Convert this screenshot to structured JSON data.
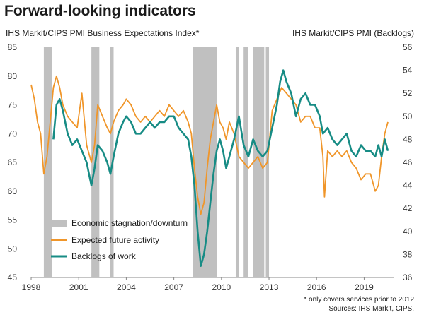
{
  "chart_data": {
    "type": "line",
    "title": "Forward-looking indicators",
    "ylabel_left": "IHS Markit/CIPS PMI Business Expectations Index*",
    "ylabel_right": "IHS Markit/CIPS PMI (Backlogs)",
    "xlim": [
      1998.0,
      2020.9
    ],
    "ylim_left": [
      45,
      85
    ],
    "ylim_right": [
      36,
      56
    ],
    "x_ticks": [
      1998,
      2001,
      2004,
      2007,
      2010,
      2013,
      2016,
      2019
    ],
    "y_left_ticks": [
      45,
      50,
      55,
      60,
      65,
      70,
      75,
      80,
      85
    ],
    "y_right_ticks": [
      36,
      38,
      40,
      42,
      44,
      46,
      48,
      50,
      52,
      54,
      56
    ],
    "shaded_periods": [
      [
        1998.8,
        1999.3
      ],
      [
        2001.8,
        2002.3
      ],
      [
        2003.0,
        2003.2
      ],
      [
        2008.2,
        2009.7
      ],
      [
        2010.9,
        2011.1
      ],
      [
        2011.4,
        2011.7
      ],
      [
        2012.0,
        2012.7
      ],
      [
        2012.8,
        2013.0
      ]
    ],
    "grid": false,
    "legend_position": "bottom-left",
    "series": [
      {
        "name": "Economic stagnation/downturn",
        "color": "#c0c0c0",
        "kind": "shading"
      },
      {
        "name": "Expected future activity",
        "color": "#f0962a",
        "axis": "left",
        "x": [
          1998.0,
          1998.2,
          1998.4,
          1998.6,
          1998.8,
          1999.0,
          1999.2,
          1999.4,
          1999.6,
          1999.8,
          2000.0,
          2000.3,
          2000.6,
          2000.9,
          2001.2,
          2001.5,
          2001.8,
          2002.0,
          2002.2,
          2002.5,
          2002.8,
          2003.0,
          2003.2,
          2003.5,
          2003.8,
          2004.0,
          2004.3,
          2004.6,
          2004.9,
          2005.2,
          2005.5,
          2005.8,
          2006.1,
          2006.4,
          2006.7,
          2007.0,
          2007.3,
          2007.6,
          2007.9,
          2008.1,
          2008.3,
          2008.5,
          2008.7,
          2008.9,
          2009.1,
          2009.3,
          2009.5,
          2009.7,
          2009.9,
          2010.1,
          2010.3,
          2010.5,
          2010.8,
          2011.1,
          2011.4,
          2011.7,
          2012.0,
          2012.3,
          2012.6,
          2012.9,
          2013.2,
          2013.5,
          2013.8,
          2014.1,
          2014.4,
          2014.7,
          2015.0,
          2015.3,
          2015.6,
          2015.9,
          2016.2,
          2016.4,
          2016.5,
          2016.7,
          2017.0,
          2017.3,
          2017.6,
          2017.9,
          2018.2,
          2018.5,
          2018.8,
          2019.1,
          2019.4,
          2019.7,
          2019.9,
          2020.1,
          2020.3,
          2020.5
        ],
        "values": [
          78.5,
          76,
          72,
          70,
          63,
          66,
          72,
          78,
          80,
          78,
          75,
          73,
          72,
          71,
          77,
          68,
          65,
          68,
          75,
          73,
          71,
          70,
          72,
          74,
          75,
          76,
          75,
          73,
          72,
          73,
          72,
          73,
          74,
          73,
          75,
          74,
          73,
          74,
          72,
          70,
          64,
          59,
          56,
          58,
          64,
          69,
          72,
          75,
          72,
          71,
          69,
          72,
          70,
          66,
          65,
          64,
          65,
          66,
          64,
          65,
          74,
          76,
          78,
          77,
          76,
          75,
          72,
          73,
          73,
          71,
          71,
          66,
          59,
          67,
          66,
          67,
          66,
          67,
          65,
          64,
          62,
          63,
          63,
          60,
          61,
          66,
          70,
          72
        ]
      },
      {
        "name": "Backlogs of work",
        "color": "#178c85",
        "axis": "right",
        "x": [
          1999.4,
          1999.6,
          1999.8,
          2000.0,
          2000.3,
          2000.6,
          2000.9,
          2001.2,
          2001.5,
          2001.8,
          2002.0,
          2002.2,
          2002.5,
          2002.8,
          2003.0,
          2003.2,
          2003.5,
          2003.8,
          2004.0,
          2004.3,
          2004.6,
          2004.9,
          2005.2,
          2005.5,
          2005.8,
          2006.1,
          2006.4,
          2006.7,
          2007.0,
          2007.3,
          2007.6,
          2007.9,
          2008.1,
          2008.3,
          2008.5,
          2008.7,
          2008.9,
          2009.1,
          2009.3,
          2009.5,
          2009.7,
          2009.9,
          2010.1,
          2010.3,
          2010.5,
          2010.8,
          2011.1,
          2011.4,
          2011.7,
          2012.0,
          2012.3,
          2012.6,
          2012.9,
          2013.2,
          2013.5,
          2013.7,
          2013.9,
          2014.1,
          2014.4,
          2014.7,
          2015.0,
          2015.3,
          2015.6,
          2015.9,
          2016.2,
          2016.4,
          2016.7,
          2017.0,
          2017.3,
          2017.6,
          2017.9,
          2018.2,
          2018.5,
          2018.8,
          2019.1,
          2019.4,
          2019.7,
          2019.9,
          2020.1,
          2020.3,
          2020.5
        ],
        "values": [
          48,
          51,
          51.5,
          50.5,
          48.5,
          47.5,
          48,
          47,
          46,
          44,
          45.5,
          47.5,
          47,
          46,
          45,
          46.5,
          48.5,
          49.5,
          50,
          49.5,
          48.5,
          48.5,
          49,
          49.5,
          49,
          49.5,
          49.5,
          50,
          50,
          49,
          48.5,
          48,
          46.5,
          44,
          40,
          37,
          38,
          40,
          42.5,
          45,
          47,
          48,
          47,
          45.5,
          46.5,
          48,
          50,
          47.5,
          46.5,
          48,
          47,
          46.5,
          47,
          49,
          51,
          53,
          54,
          53,
          52,
          50,
          51.5,
          52,
          51,
          51,
          50,
          48.5,
          49,
          48,
          47.5,
          48,
          48.5,
          47,
          46.5,
          47.5,
          47,
          47,
          46.5,
          47.5,
          46.5,
          48,
          47
        ]
      }
    ]
  },
  "footnotes": {
    "note": "* only covers services prior to 2012",
    "source": "Sources: IHS Markit, CIPS."
  }
}
